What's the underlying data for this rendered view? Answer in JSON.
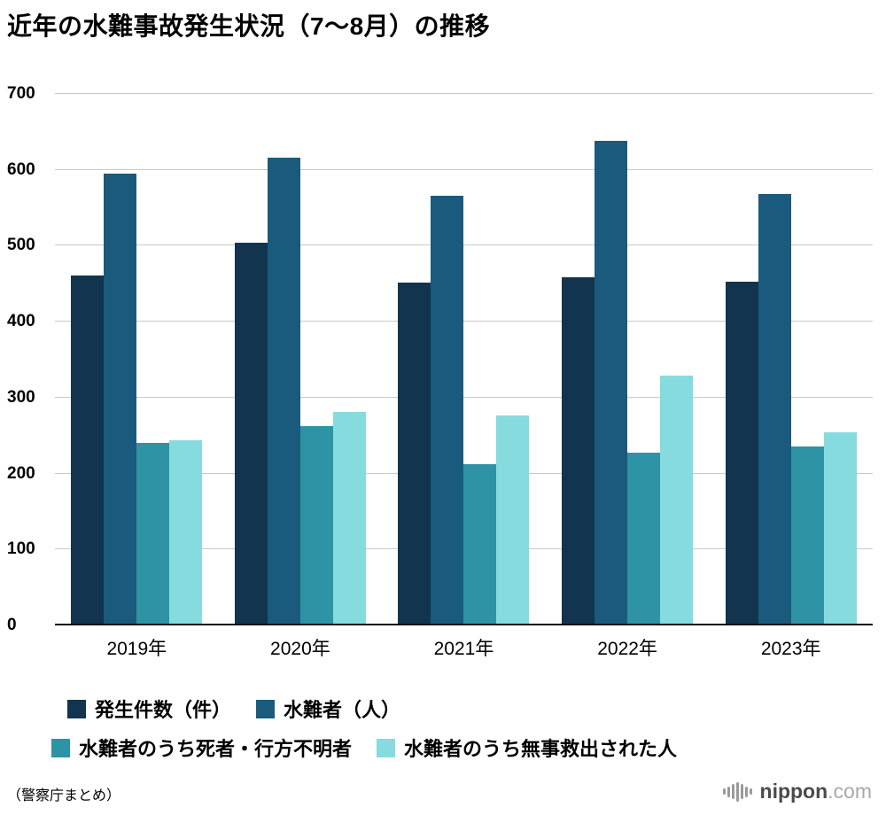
{
  "title": "近年の水難事故発生状況（7〜8月）の推移",
  "source_note": "（警察庁まとめ）",
  "logo": {
    "name": "nippon",
    "tld": ".com"
  },
  "chart_data": {
    "type": "bar",
    "title": "近年の水難事故発生状況（7〜8月）の推移",
    "categories": [
      "2019年",
      "2020年",
      "2021年",
      "2022年",
      "2023年"
    ],
    "series": [
      {
        "name": "発生件数（件）",
        "color": "#12344E",
        "values": [
          461,
          504,
          452,
          459,
          453
        ]
      },
      {
        "name": "水難者（人）",
        "color": "#1A5A7C",
        "values": [
          595,
          616,
          566,
          638,
          568
        ]
      },
      {
        "name": "水難者のうち死者・行方不明者",
        "color": "#2E93A4",
        "values": [
          240,
          262,
          212,
          228,
          236
        ]
      },
      {
        "name": "水難者のうち無事救出された人",
        "color": "#85DBDE",
        "values": [
          244,
          281,
          277,
          329,
          254
        ]
      }
    ],
    "xlabel": "",
    "ylabel": "",
    "ylim": [
      0,
      700
    ],
    "yticks": [
      0,
      100,
      200,
      300,
      400,
      500,
      600,
      700
    ],
    "grid": true,
    "legend_position": "bottom",
    "legend_rows": [
      [
        0,
        1
      ],
      [
        2,
        3
      ]
    ]
  }
}
